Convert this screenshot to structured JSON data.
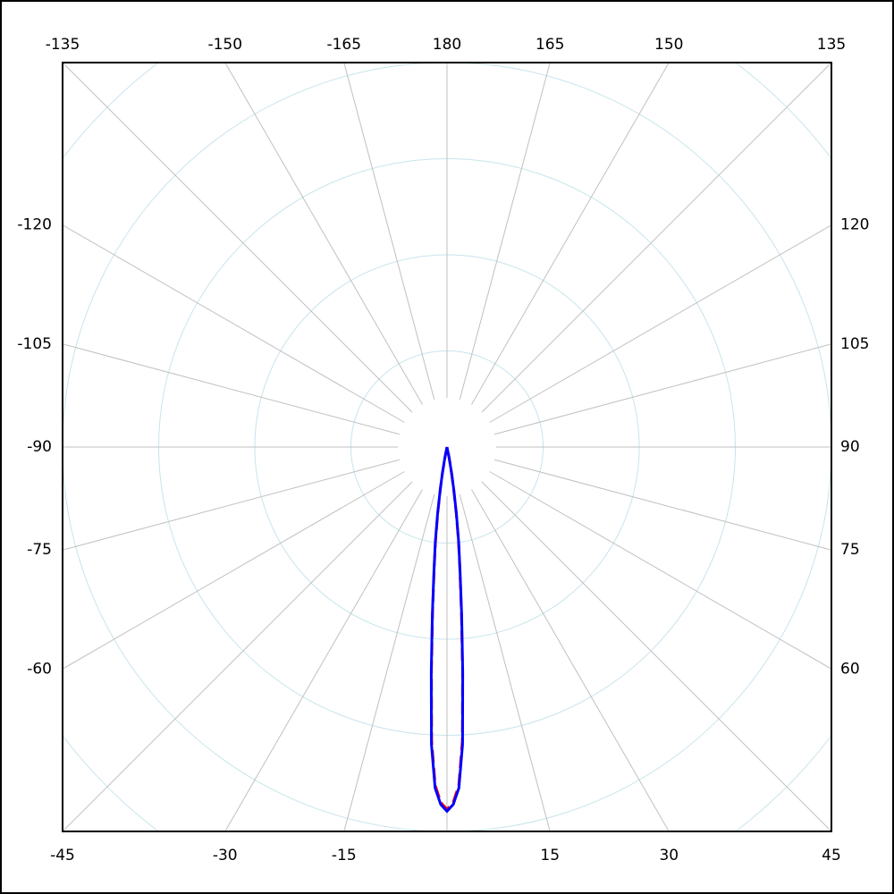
{
  "chart_data": {
    "type": "polar",
    "x": [
      -12,
      -11,
      -10,
      -9,
      -8,
      -7,
      -6,
      -5,
      -4,
      -3,
      -2,
      -1,
      0,
      1,
      2,
      3,
      4,
      5,
      6,
      7,
      8,
      9,
      10,
      11,
      12
    ],
    "series": [
      {
        "color": "#ff0000",
        "values": [
          0,
          0.11,
          0.27,
          0.44,
          0.69,
          0.98,
          1.28,
          1.72,
          2.32,
          3.06,
          3.52,
          3.7,
          3.77,
          3.7,
          3.52,
          3.06,
          2.32,
          1.72,
          1.28,
          0.98,
          0.69,
          0.44,
          0.27,
          0.11,
          0
        ]
      },
      {
        "color": "#0000ff",
        "values": [
          0,
          0.12,
          0.28,
          0.45,
          0.7,
          1.0,
          1.3,
          1.75,
          2.35,
          3.1,
          3.55,
          3.72,
          3.79,
          3.72,
          3.55,
          3.1,
          2.35,
          1.75,
          1.3,
          1.0,
          0.7,
          0.45,
          0.28,
          0.12,
          0
        ]
      }
    ],
    "rlim": [
      0,
      4
    ],
    "rticks": [
      1,
      2,
      3,
      4,
      5
    ],
    "angle_ticks": [
      -165,
      -150,
      -135,
      -120,
      -105,
      -90,
      -75,
      -60,
      -45,
      -30,
      -15,
      {
        "value": 0,
        "label": null
      },
      15,
      30,
      45,
      60,
      75,
      90,
      105,
      120,
      135,
      150,
      165,
      180
    ],
    "grid": true
  }
}
